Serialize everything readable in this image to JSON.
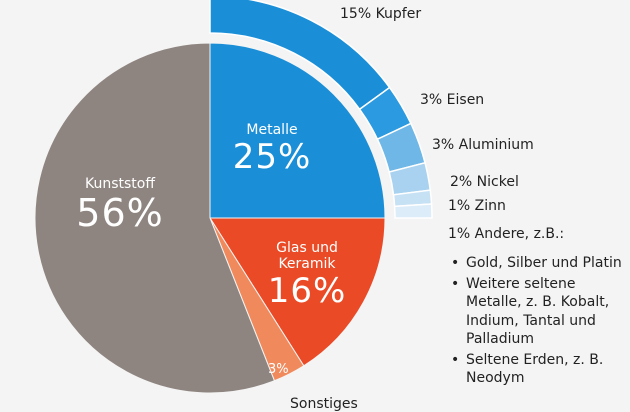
{
  "chart_data": {
    "type": "pie",
    "slices": [
      {
        "label": "Metalle",
        "value": 25,
        "pct_label": "25%",
        "color": "#1a8fd8"
      },
      {
        "label": "Glas und Keramik",
        "value": 16,
        "pct_label": "16%",
        "color": "#ea4a26"
      },
      {
        "label": "Sonstiges",
        "value": 3,
        "pct_label": "3%",
        "color": "#f08a5d"
      },
      {
        "label": "Kunststoff",
        "value": 56,
        "pct_label": "56%",
        "color": "#8e8580"
      }
    ],
    "metal_breakdown": [
      {
        "label": "15% Kupfer",
        "value": 15,
        "color": "#1a8fd8"
      },
      {
        "label": "3% Eisen",
        "value": 3,
        "color": "#2b9ae0"
      },
      {
        "label": "3% Aluminium",
        "value": 3,
        "color": "#6fb7e6"
      },
      {
        "label": "2% Nickel",
        "value": 2,
        "color": "#a8d2ef"
      },
      {
        "label": "1% Zinn",
        "value": 1,
        "color": "#c7e1f4"
      },
      {
        "label": "1% Andere, z.B.:",
        "value": 1,
        "color": "#dcecf8"
      }
    ],
    "andere_examples": [
      "Gold, Silber und Platin",
      "Weitere seltene Metalle, z. B. Kobalt, Indium, Tantal und Palladium",
      "Seltene Erden, z. B. Neodym"
    ]
  },
  "labels": {
    "kunststoff_name": "Kunststoff",
    "metalle_name": "Metalle",
    "glas_name": "Glas und Keramik",
    "sonstiges_name": "Sonstiges"
  }
}
